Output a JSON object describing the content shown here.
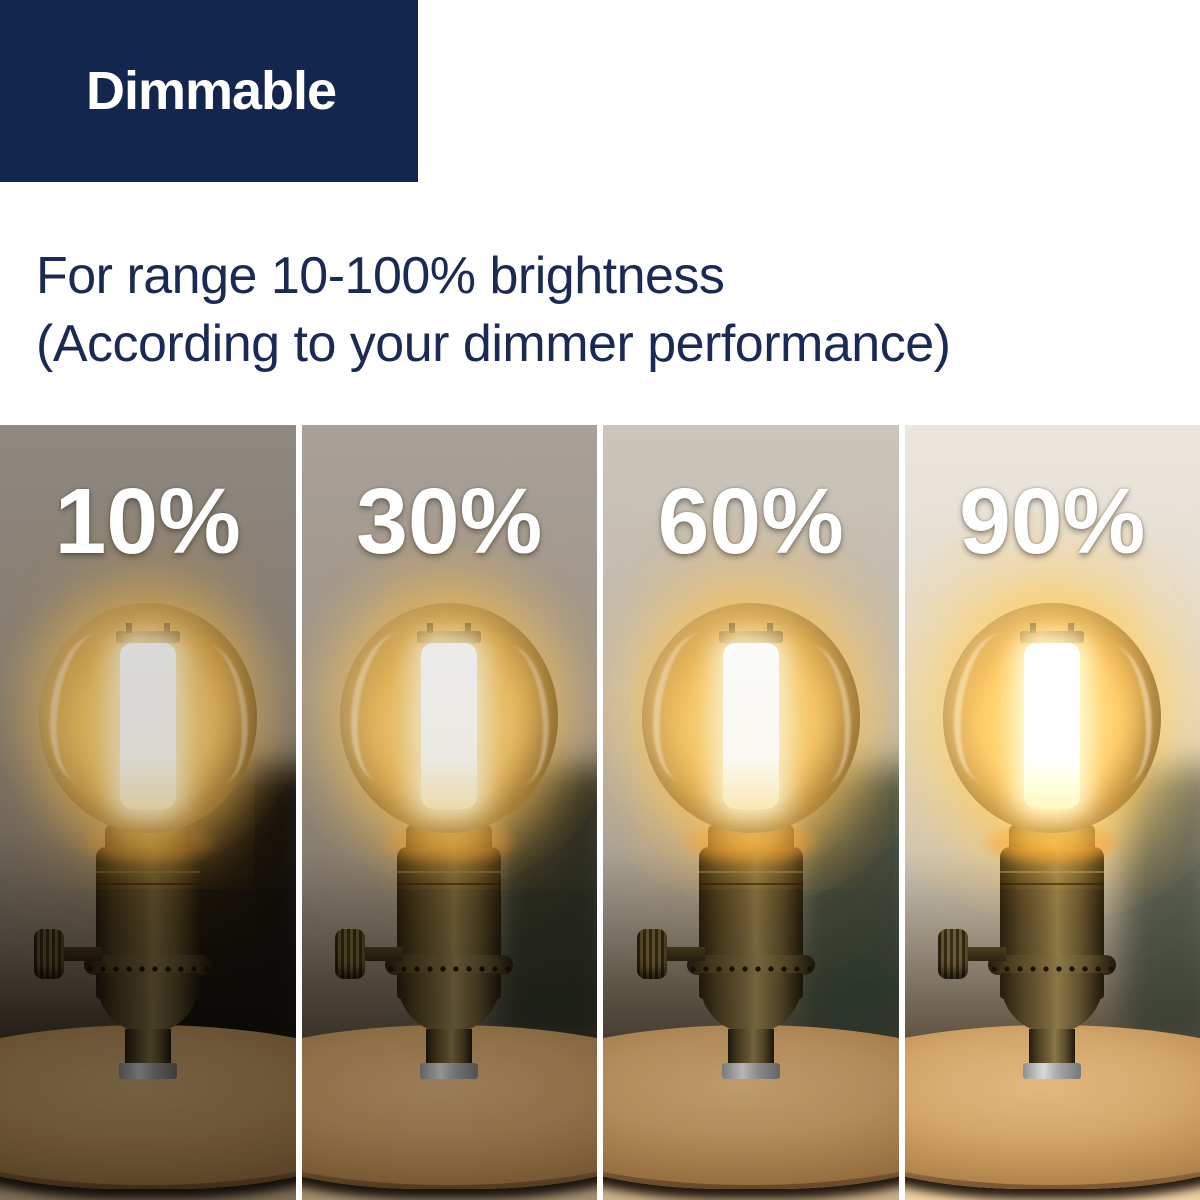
{
  "badge": {
    "label": "Dimmable",
    "bg_color": "#13264e",
    "text_color": "#ffffff"
  },
  "description": {
    "line1": "For range 10-100% brightness",
    "line2": "(According to your dimmer performance)",
    "text_color": "#1b2a55"
  },
  "panels": [
    {
      "label": "10%",
      "brightness_percent": 10
    },
    {
      "label": "30%",
      "brightness_percent": 30
    },
    {
      "label": "60%",
      "brightness_percent": 60
    },
    {
      "label": "90%",
      "brightness_percent": 90
    }
  ],
  "panel_label_color": "#ffffff",
  "scene": {
    "bulb_type": "globe filament bulb",
    "socket": "bronze dimmer socket with knob",
    "base": "round wooden base"
  }
}
